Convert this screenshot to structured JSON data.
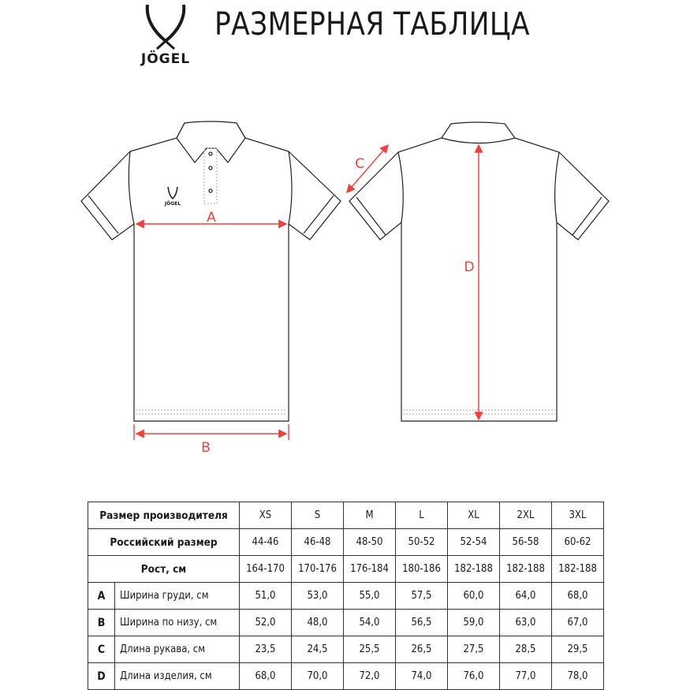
{
  "header": {
    "title": "РАЗМЕРНАЯ ТАБЛИЦА",
    "brand": "JÖGEL"
  },
  "diagram": {
    "labels": {
      "a": "A",
      "b": "B",
      "c": "C",
      "d": "D"
    },
    "measure_color": "#f0403c"
  },
  "table": {
    "header_label": "Размер производителя",
    "sizes": [
      "XS",
      "S",
      "M",
      "L",
      "XL",
      "2XL",
      "3XL"
    ],
    "russian_label": "Российский размер",
    "russian": [
      "44-46",
      "46-48",
      "48-50",
      "50-52",
      "52-54",
      "56-58",
      "60-62"
    ],
    "height_label": "Рост, см",
    "heights": [
      "164-170",
      "170-176",
      "176-184",
      "180-186",
      "182-188",
      "182-188",
      "182-188"
    ],
    "rows": [
      {
        "letter": "A",
        "name": "Ширина груди, см",
        "values": [
          "51,0",
          "53,0",
          "55,0",
          "57,5",
          "60,0",
          "64,0",
          "68,0"
        ]
      },
      {
        "letter": "B",
        "name": "Ширина по низу, см",
        "values": [
          "52,0",
          "48,0",
          "54,0",
          "56,5",
          "59,0",
          "63,0",
          "67,0"
        ]
      },
      {
        "letter": "C",
        "name": "Длина рукава, см",
        "values": [
          "23,5",
          "24,5",
          "25,5",
          "26,5",
          "27,5",
          "28,5",
          "29,5"
        ]
      },
      {
        "letter": "D",
        "name": "Длина изделия, см",
        "values": [
          "68,0",
          "70,0",
          "72,0",
          "74,0",
          "76,0",
          "77,0",
          "78,0"
        ]
      }
    ]
  }
}
